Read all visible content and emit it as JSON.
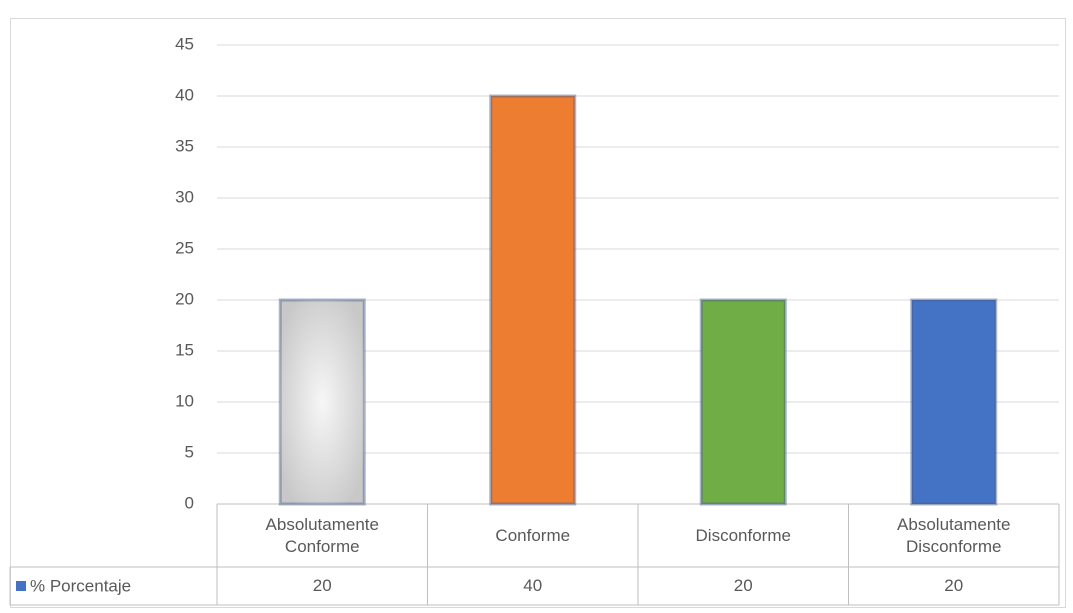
{
  "chart_data": {
    "type": "bar",
    "categories": [
      "Absolutamente Conforme",
      "Conforme",
      "Disconforme",
      "Absolutamente Disconforme"
    ],
    "series": [
      {
        "name": "% Porcentaje",
        "color": "#4472c4",
        "values": [
          20,
          40,
          20,
          20
        ]
      }
    ],
    "point_colors": [
      "#c8c8c8",
      "#ed7d31",
      "#70ad47",
      "#4472c4"
    ],
    "ylim": [
      0,
      45
    ],
    "yticks": [
      0,
      5,
      10,
      15,
      20,
      25,
      30,
      35,
      40,
      45
    ],
    "grid": true
  }
}
